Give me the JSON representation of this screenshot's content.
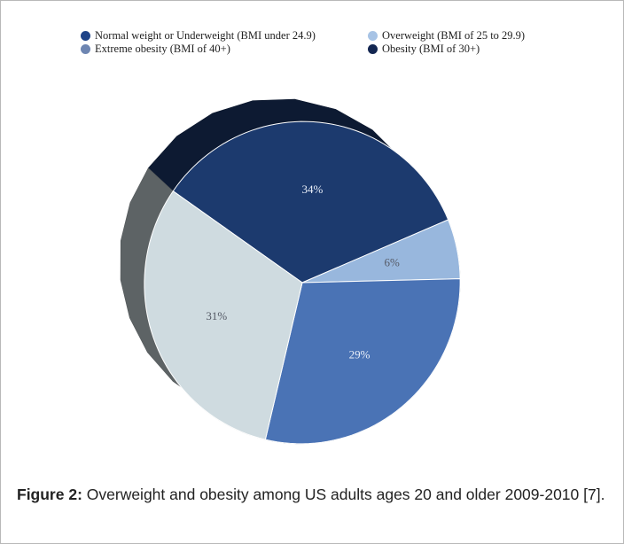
{
  "chart_data": {
    "type": "pie",
    "title": "",
    "legend_placement": "top",
    "slices": [
      {
        "name": "Normal weight or Underweight (BMI under 24.9)",
        "value": 34,
        "label": "34%",
        "color": "#1c3a6e"
      },
      {
        "name": "Overweight (BMI of 25 to 29.9)",
        "value": 6,
        "label": "6%",
        "color": "#98b7dd"
      },
      {
        "name": "Extreme obesity (BMI of 40+)",
        "value": 29,
        "label": "29%",
        "color": "#4a73b5"
      },
      {
        "name": "Obesity (BMI of 30+)",
        "value": 31,
        "label": "31%",
        "color": "#cfdbe0"
      }
    ]
  },
  "legend": {
    "items": [
      {
        "label": "Normal weight or Underweight (BMI under 24.9)",
        "color": "#1f4488"
      },
      {
        "label": "Overweight (BMI of 25 to 29.9)",
        "color": "#a7c3e5"
      },
      {
        "label": "Extreme obesity (BMI of 40+)",
        "color": "#6e86b2"
      },
      {
        "label": "Obesity (BMI of 30+)",
        "color": "#132651"
      }
    ]
  },
  "caption": {
    "prefix": "Figure 2:",
    "text": " Overweight and obesity among US adults ages 20 and older 2009-2010 [7]."
  }
}
